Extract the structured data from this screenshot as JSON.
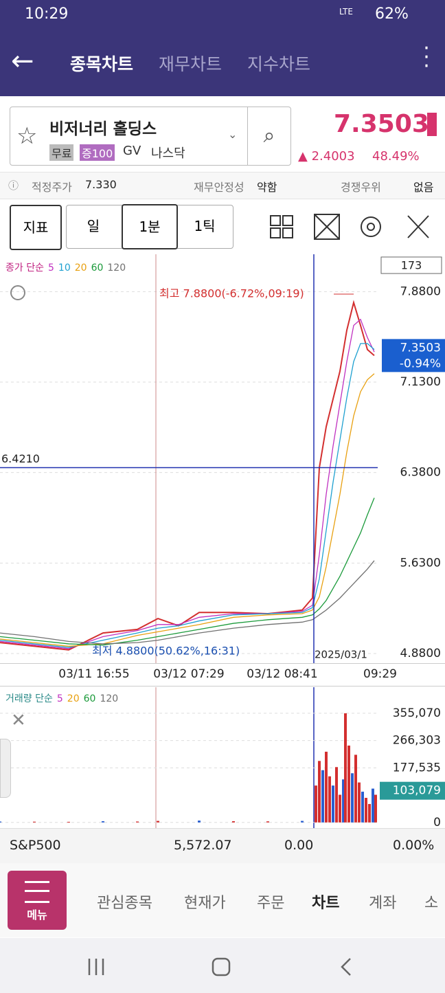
{
  "status": {
    "time": "10:29",
    "network": "LTE",
    "battery": "62%"
  },
  "nav": {
    "tabs": [
      "종목차트",
      "재무차트",
      "지수차트"
    ]
  },
  "stock": {
    "name": "비저너리 홀딩스",
    "tags": [
      "무료",
      "증100",
      "GV",
      "나스닥"
    ],
    "price": "7.3503",
    "change": "▲ 2.4003",
    "change_pct": "48.49%"
  },
  "info": {
    "fair_label": "적정주가",
    "fair": "7.330",
    "stability_label": "재무안정성",
    "stability": "약함",
    "moat_label": "경쟁우위",
    "moat": "없음"
  },
  "toolbar": {
    "indicator": "지표",
    "periods": [
      "일",
      "1분",
      "1틱"
    ]
  },
  "chart_data": [
    {
      "type": "line",
      "legend_label": "종가 단순",
      "count_label": "173",
      "x": [
        0,
        50,
        100,
        150,
        200,
        230,
        260,
        290,
        340,
        390,
        440,
        455,
        465,
        475,
        485,
        495,
        505,
        515,
        525,
        535,
        545
      ],
      "xlim": [
        0,
        550
      ],
      "ylim": [
        4.8,
        8.19
      ],
      "yticks": [
        {
          "value": 7.88,
          "label": "7.8800"
        },
        {
          "value": 7.13,
          "label": "7.1300"
        },
        {
          "value": 6.38,
          "label": "6.3800"
        },
        {
          "value": 5.63,
          "label": "5.6300"
        },
        {
          "value": 4.88,
          "label": "4.8800"
        }
      ],
      "xticks": [
        {
          "value": 137,
          "label": "03/11 16:55"
        },
        {
          "value": 275,
          "label": "03/12 07:29"
        },
        {
          "value": 411,
          "label": "03/12 08:41"
        },
        {
          "value": 550,
          "label": "09:29"
        }
      ],
      "crosshair": {
        "x": 457,
        "x_label": "2025/03/1",
        "y": {
          "value": 6.421,
          "label": "6.4210"
        }
      },
      "marker_x": 227,
      "current": {
        "value": 7.3503,
        "label": "7.3503",
        "change": "-0.94%"
      },
      "high_label": "최고 7.8800(-6.72%,09:19)",
      "low_label": "최저 4.8800(50.62%,16:31)",
      "series": [
        {
          "name": "종가",
          "color": "#d32f2f",
          "values": [
            4.97,
            4.94,
            4.91,
            5.05,
            5.08,
            5.17,
            5.11,
            5.22,
            5.22,
            5.21,
            5.24,
            5.34,
            6.42,
            6.76,
            6.99,
            7.22,
            7.56,
            7.79,
            7.6,
            7.4,
            7.35
          ]
        },
        {
          "name": "5",
          "color": "#c030c0",
          "values": [
            4.98,
            4.95,
            4.92,
            5.02,
            5.07,
            5.12,
            5.12,
            5.18,
            5.21,
            5.21,
            5.23,
            5.28,
            5.7,
            6.2,
            6.6,
            6.95,
            7.3,
            7.6,
            7.65,
            7.5,
            7.38
          ]
        },
        {
          "name": "10",
          "color": "#1ea0d0",
          "values": [
            4.99,
            4.96,
            4.93,
            4.99,
            5.05,
            5.09,
            5.11,
            5.15,
            5.2,
            5.21,
            5.22,
            5.26,
            5.5,
            5.9,
            6.3,
            6.65,
            7.0,
            7.3,
            7.45,
            7.45,
            7.4
          ]
        },
        {
          "name": "20",
          "color": "#e8a010",
          "values": [
            5.0,
            4.97,
            4.94,
            4.96,
            5.03,
            5.06,
            5.09,
            5.12,
            5.18,
            5.2,
            5.21,
            5.24,
            5.35,
            5.6,
            5.9,
            6.2,
            6.55,
            6.85,
            7.05,
            7.15,
            7.2
          ]
        },
        {
          "name": "60",
          "color": "#1a9a3a",
          "values": [
            5.02,
            4.99,
            4.96,
            4.95,
            4.99,
            5.02,
            5.05,
            5.08,
            5.13,
            5.16,
            5.18,
            5.2,
            5.25,
            5.32,
            5.42,
            5.52,
            5.64,
            5.76,
            5.88,
            6.03,
            6.17
          ]
        },
        {
          "name": "120",
          "color": "#707070",
          "values": [
            5.05,
            5.02,
            4.98,
            4.96,
            4.97,
            4.99,
            5.02,
            5.05,
            5.09,
            5.12,
            5.14,
            5.16,
            5.2,
            5.24,
            5.29,
            5.34,
            5.4,
            5.46,
            5.52,
            5.58,
            5.65
          ]
        }
      ]
    },
    {
      "type": "bar",
      "legend_label": "거래량 단순",
      "ma_labels": [
        {
          "name": "5",
          "color": "#c030c0"
        },
        {
          "name": "20",
          "color": "#e8a010"
        },
        {
          "name": "60",
          "color": "#1a9a3a"
        },
        {
          "name": "120",
          "color": "#707070"
        }
      ],
      "x": [
        0,
        50,
        100,
        150,
        200,
        230,
        290,
        340,
        390,
        440,
        460,
        465,
        470,
        475,
        480,
        485,
        490,
        495,
        500,
        503,
        508,
        513,
        518,
        523,
        528,
        533,
        538,
        543,
        547
      ],
      "xlim": [
        0,
        550
      ],
      "ylim": [
        -18330,
        439830
      ],
      "values": [
        3000,
        2500,
        2000,
        4000,
        3000,
        5000,
        6000,
        4000,
        3500,
        5000,
        120000,
        200000,
        170000,
        230000,
        150000,
        120000,
        180000,
        90000,
        140000,
        355000,
        250000,
        160000,
        220000,
        130000,
        100000,
        80000,
        60000,
        110000,
        90000
      ],
      "color": "#d32f2f",
      "yticks": [
        {
          "value": 355070,
          "label": "355,070"
        },
        {
          "value": 266303,
          "label": "266,303"
        },
        {
          "value": 177535,
          "label": "177,535"
        },
        0
      ],
      "current": {
        "value": 103079,
        "label": "103,079"
      }
    }
  ],
  "index_bar": {
    "name": "S&P500",
    "value": "5,572.07",
    "change": "0.00",
    "change_pct": "0.00%"
  },
  "bottom_nav": {
    "menu": "메뉴",
    "items": [
      "관심종목",
      "현재가",
      "주문",
      "차트",
      "계좌",
      "소"
    ]
  }
}
